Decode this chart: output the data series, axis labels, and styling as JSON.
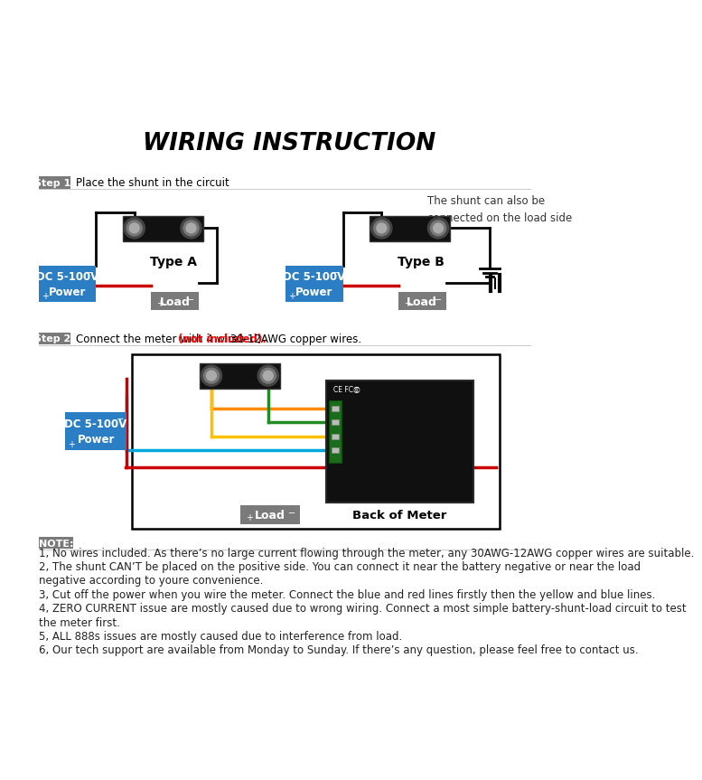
{
  "title": "WIRING INSTRUCTION",
  "step1_label": "Step 1:",
  "step1_text": "Place the shunt in the circuit",
  "step2_label": "Step 2:",
  "step2_text": "Connect the meter with 4 wires ",
  "step2_red": "(not included).",
  "step2_rest": " 30-12AWG copper wires.",
  "note_label": "NOTE:",
  "note_lines": [
    "1, No wires included. As there’s no large current flowing through the meter, any 30AWG-12AWG copper wires are suitable.",
    "2, The shunt CAN’T be placed on the positive side. You can connect it near the battery negative or near the load",
    "negative according to youre convenience.",
    "3, Cut off the power when you wire the meter. Connect the blue and red lines firstly then the yellow and blue lines.",
    "4, ZERO CURRENT issue are mostly caused due to wrong wiring. Connect a most simple battery-shunt-load circuit to test",
    "the meter first.",
    "5, ALL 888s issues are mostly caused due to interference from load.",
    "6, Our tech support are available from Monday to Sunday. If there’s any question, please feel free to contact us."
  ],
  "type_a_label": "Type A",
  "type_b_label": "Type B",
  "power_label": "DC 5-100V\nPower",
  "load_label": "Load",
  "back_meter_label": "Back of Meter",
  "shunt_note": "The shunt can also be\nconnected on the load side",
  "bg_color": "#ffffff",
  "blue_color": "#2B7EC3",
  "gray_color": "#7a7a7a",
  "step_bg": "#7a7a7a",
  "title_fontsize": 19,
  "step_fontsize": 8.5,
  "body_fontsize": 8.5,
  "wire_colors_step2": [
    "#FF8C00",
    "#228B22",
    "#FFC000",
    "#00AADD"
  ],
  "red_wire": "#CC0000"
}
